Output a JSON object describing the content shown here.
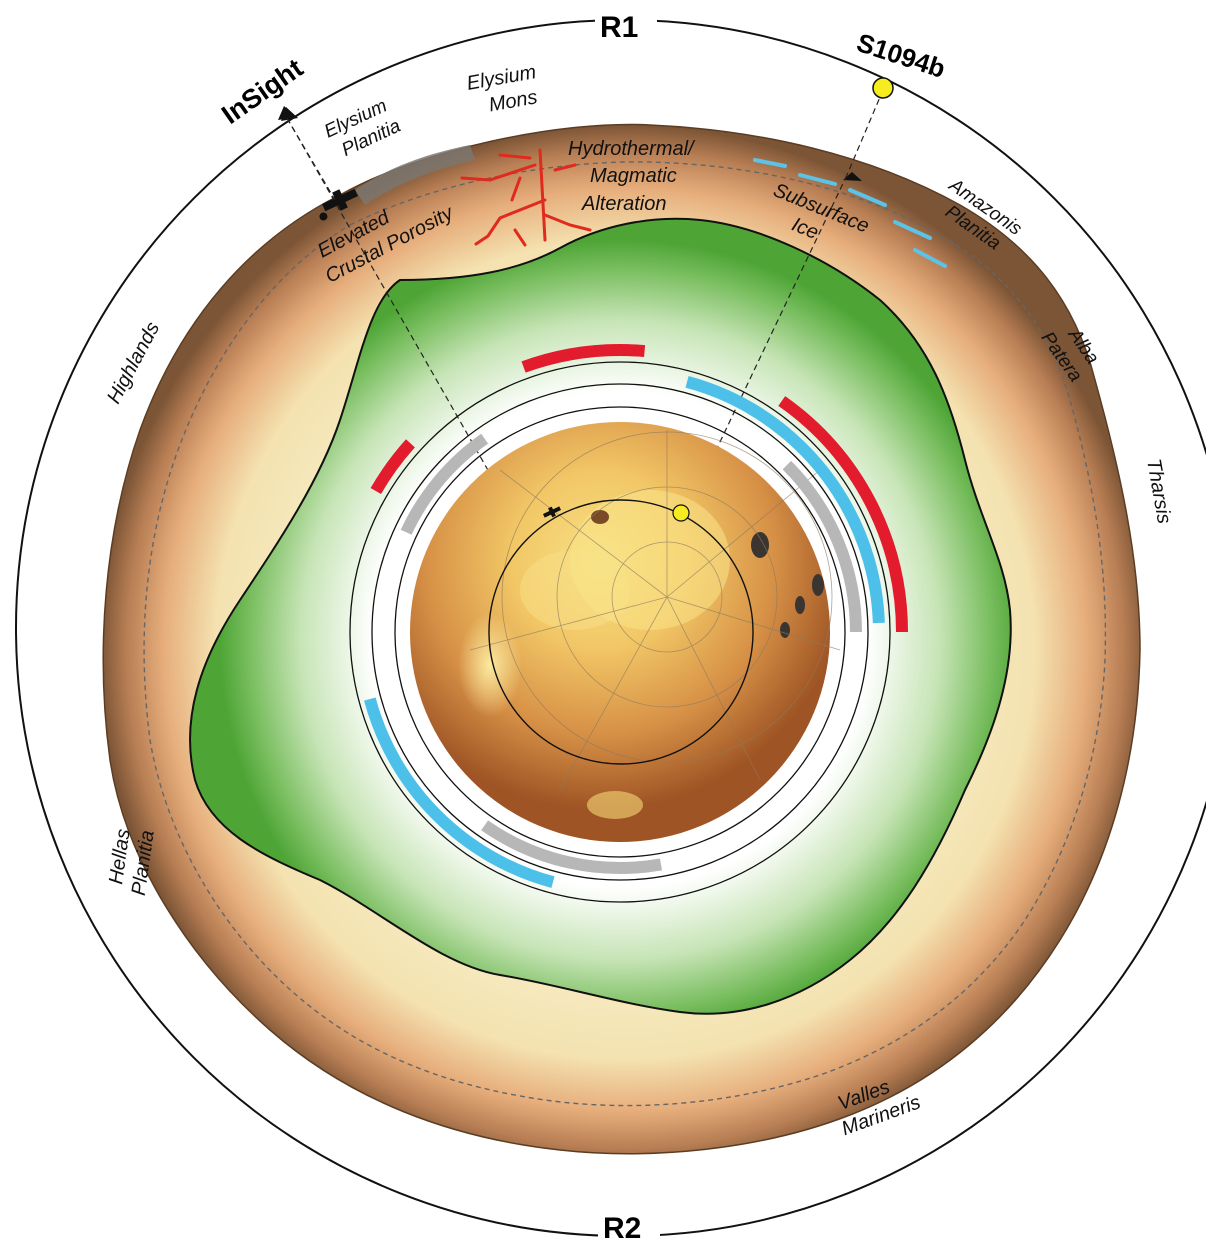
{
  "orbit_labels": {
    "top": "R1",
    "bottom": "R2"
  },
  "station": {
    "name": "InSight",
    "color": "#000000"
  },
  "event": {
    "name": "S1094b",
    "marker_color": "#f7ec1f"
  },
  "regions": {
    "elysium_mons": [
      "Elysium",
      "Mons"
    ],
    "elysium_planitia": [
      "Elysium",
      "Planitia"
    ],
    "hydrothermal": [
      "Hydrothermal/",
      "Magmatic",
      "Alteration"
    ],
    "porosity": [
      "Elevated",
      "Crustal Porosity"
    ],
    "subsurface_ice": [
      "Subsurface",
      "Ice"
    ],
    "amazonis": [
      "Amazonis",
      "Planitia"
    ],
    "alba": [
      "Alba",
      "Patera"
    ],
    "tharsis": "Tharsis",
    "highlands": "Highlands",
    "hellas": [
      "Hellas",
      "Planitia"
    ],
    "valles": [
      "Valles",
      "Marineris"
    ]
  },
  "colors": {
    "crust_outer": "#8a6240",
    "crust_mid": "#e0a575",
    "crust_inner": "#f7efc8",
    "mantle_green": "#58ab3f",
    "alteration_red": "#e02a1e",
    "ice_blue": "#5bc3e8",
    "arc_red": "#e21b2d",
    "arc_blue": "#4dc0ea",
    "arc_gray": "#b7b7b7",
    "planet_light": "#f4d870",
    "planet_dark": "#a85a23"
  }
}
